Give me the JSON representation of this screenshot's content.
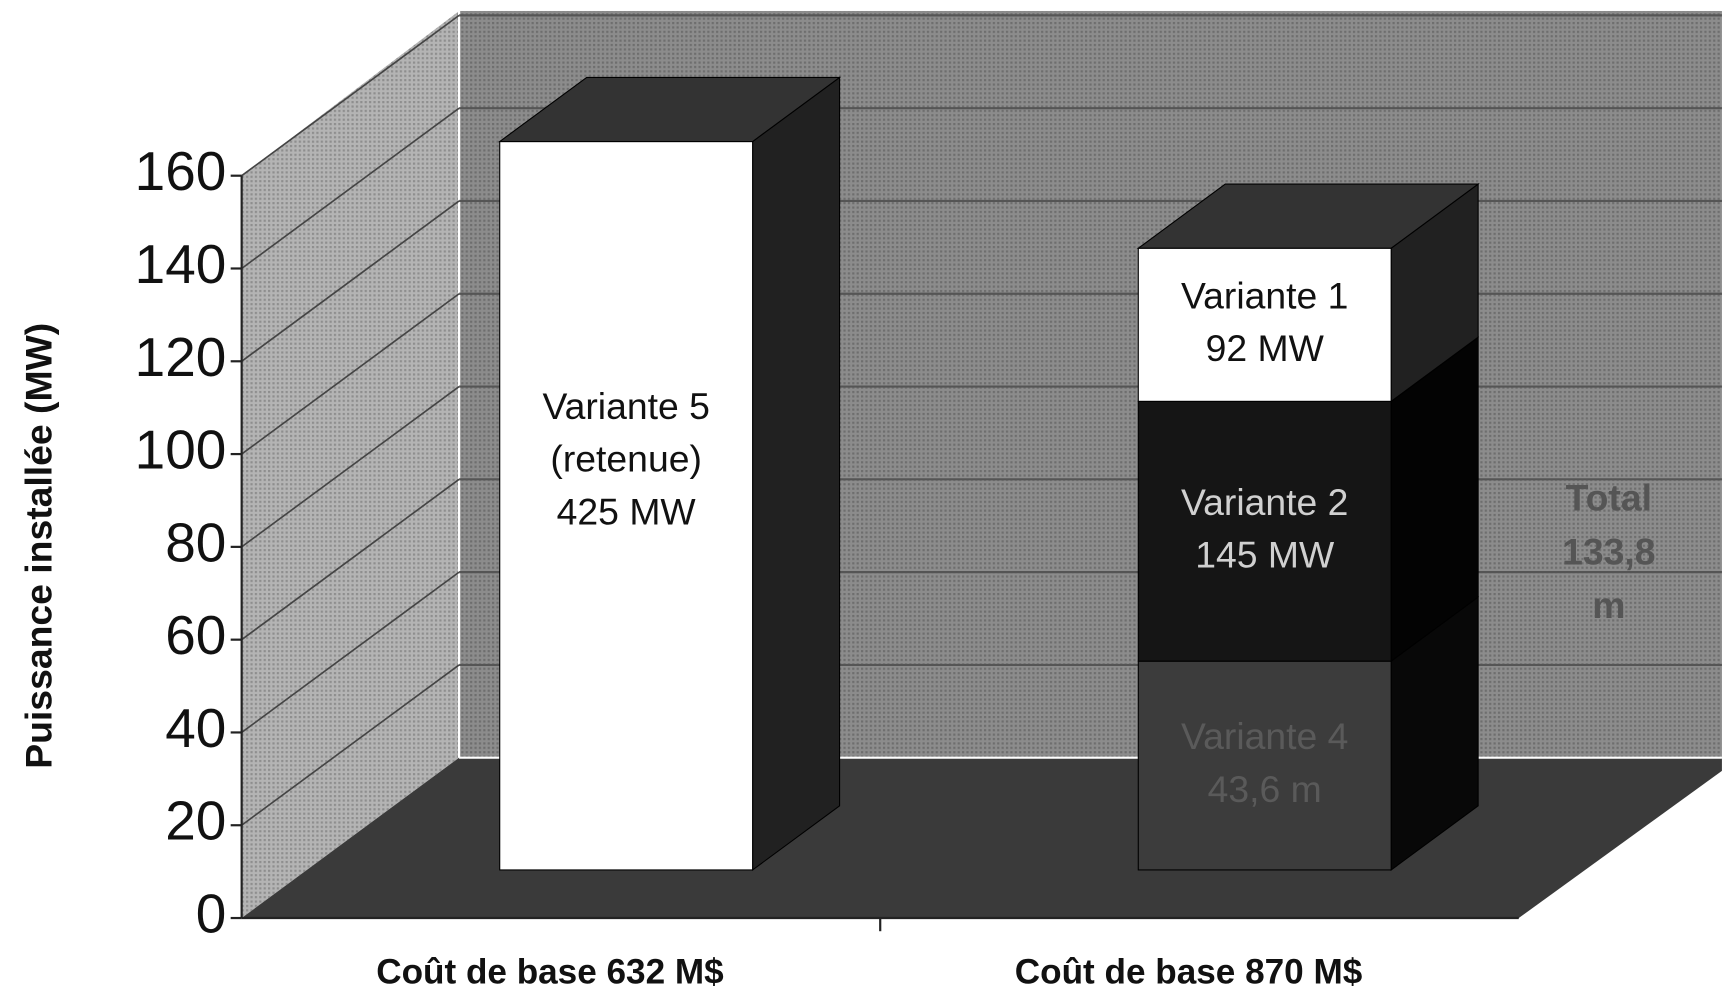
{
  "chart_data": {
    "type": "bar3d_stacked",
    "y_label": "Puissance installée (MW)",
    "categories": [
      "Coût de base 632 M$",
      "Coût de base 870 M$"
    ],
    "ylim": [
      0,
      160
    ],
    "yticks": [
      0,
      20,
      40,
      60,
      80,
      100,
      120,
      140,
      160
    ],
    "grid": true,
    "series": [
      {
        "label": [
          "Variante 5",
          "(retenue)",
          "425 MW"
        ],
        "color": "#ffffff",
        "label_color": "#111111",
        "values": [
          157,
          null
        ]
      },
      {
        "label": [
          "Variante 4",
          "43,6 m"
        ],
        "color": "#3c3c3c",
        "label_color": "#5a5a5a",
        "values": [
          null,
          45
        ]
      },
      {
        "label": [
          "Variante 2",
          "145 MW"
        ],
        "color": "#151515",
        "label_color": "#d0d0d0",
        "values": [
          null,
          56
        ]
      },
      {
        "label": [
          "Variante 1",
          "92 MW"
        ],
        "color": "#ffffff",
        "label_color": "#111111",
        "values": [
          null,
          33
        ]
      }
    ],
    "annotation": [
      "Total",
      "133,8",
      "m"
    ]
  }
}
